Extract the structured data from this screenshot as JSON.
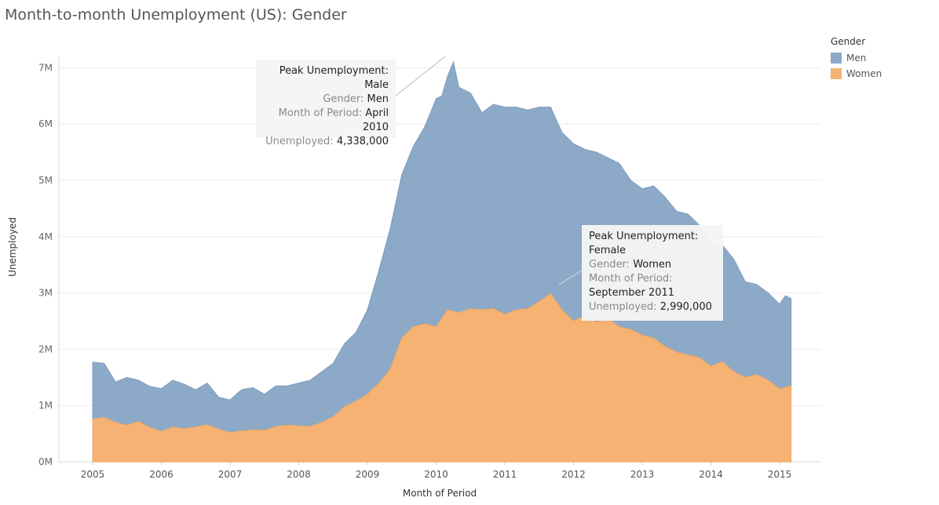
{
  "title": "Month-to-month Unemployment (US): Gender",
  "legend": {
    "title": "Gender",
    "items": [
      {
        "label": "Men",
        "color": "#8CA9C8"
      },
      {
        "label": "Women",
        "color": "#F5B273"
      }
    ]
  },
  "annotations": {
    "male": {
      "heading_label": "Peak Unemployment:",
      "heading_value": "Male",
      "gender_key": "Gender:",
      "gender_value": "Men",
      "month_key": "Month of Period:",
      "month_value_1": "April",
      "month_value_2": "2010",
      "unemployed_key": "Unemployed:",
      "unemployed_value": "4,338,000"
    },
    "female": {
      "heading_1": "Peak Unemployment:",
      "heading_2": "Female",
      "gender_key": "Gender:",
      "gender_value": "Women",
      "month_key": "Month of Period:",
      "month_value": "September 2011",
      "unemployed_key": "Unemployed:",
      "unemployed_value": "2,990,000"
    }
  },
  "chart_data": {
    "type": "area",
    "stacked": true,
    "title": "Month-to-month Unemployment (US): Gender",
    "xlabel": "Month of Period",
    "ylabel": "Unemployed",
    "ylim": [
      0,
      7200000
    ],
    "y_ticks": [
      "0M",
      "1M",
      "2M",
      "3M",
      "4M",
      "5M",
      "6M",
      "7M"
    ],
    "x_ticks": [
      "2005",
      "2006",
      "2007",
      "2008",
      "2009",
      "2010",
      "2011",
      "2012",
      "2013",
      "2014",
      "2015"
    ],
    "grid": true,
    "legend_position": "top-right",
    "series": [
      {
        "name": "Women",
        "color": "#F5B273",
        "points": [
          [
            "2005-01",
            760000
          ],
          [
            "2005-03",
            790000
          ],
          [
            "2005-05",
            700000
          ],
          [
            "2005-07",
            650000
          ],
          [
            "2005-09",
            720000
          ],
          [
            "2005-11",
            610000
          ],
          [
            "2006-01",
            540000
          ],
          [
            "2006-03",
            620000
          ],
          [
            "2006-05",
            590000
          ],
          [
            "2006-07",
            620000
          ],
          [
            "2006-09",
            660000
          ],
          [
            "2006-11",
            580000
          ],
          [
            "2007-01",
            520000
          ],
          [
            "2007-03",
            550000
          ],
          [
            "2007-05",
            570000
          ],
          [
            "2007-07",
            560000
          ],
          [
            "2007-09",
            630000
          ],
          [
            "2007-11",
            650000
          ],
          [
            "2008-01",
            640000
          ],
          [
            "2008-03",
            630000
          ],
          [
            "2008-05",
            700000
          ],
          [
            "2008-07",
            800000
          ],
          [
            "2008-09",
            980000
          ],
          [
            "2008-11",
            1080000
          ],
          [
            "2009-01",
            1200000
          ],
          [
            "2009-03",
            1400000
          ],
          [
            "2009-05",
            1650000
          ],
          [
            "2009-07",
            2200000
          ],
          [
            "2009-09",
            2400000
          ],
          [
            "2009-11",
            2450000
          ],
          [
            "2010-01",
            2400000
          ],
          [
            "2010-03",
            2700000
          ],
          [
            "2010-05",
            2650000
          ],
          [
            "2010-07",
            2720000
          ],
          [
            "2010-09",
            2700000
          ],
          [
            "2010-11",
            2720000
          ],
          [
            "2011-01",
            2620000
          ],
          [
            "2011-03",
            2700000
          ],
          [
            "2011-05",
            2720000
          ],
          [
            "2011-07",
            2850000
          ],
          [
            "2011-09",
            2990000
          ],
          [
            "2011-11",
            2700000
          ],
          [
            "2012-01",
            2500000
          ],
          [
            "2012-03",
            2600000
          ],
          [
            "2012-05",
            2480000
          ],
          [
            "2012-07",
            2550000
          ],
          [
            "2012-09",
            2400000
          ],
          [
            "2012-11",
            2350000
          ],
          [
            "2013-01",
            2250000
          ],
          [
            "2013-03",
            2200000
          ],
          [
            "2013-05",
            2050000
          ],
          [
            "2013-07",
            1950000
          ],
          [
            "2013-09",
            1900000
          ],
          [
            "2013-11",
            1850000
          ],
          [
            "2014-01",
            1700000
          ],
          [
            "2014-03",
            1780000
          ],
          [
            "2014-05",
            1600000
          ],
          [
            "2014-07",
            1500000
          ],
          [
            "2014-09",
            1550000
          ],
          [
            "2014-11",
            1450000
          ],
          [
            "2015-01",
            1300000
          ],
          [
            "2015-03",
            1350000
          ]
        ]
      },
      {
        "name": "Men",
        "color": "#8CA9C8",
        "points": [
          [
            "2005-01",
            1770000
          ],
          [
            "2005-03",
            1750000
          ],
          [
            "2005-05",
            1420000
          ],
          [
            "2005-07",
            1500000
          ],
          [
            "2005-09",
            1450000
          ],
          [
            "2005-11",
            1340000
          ],
          [
            "2006-01",
            1300000
          ],
          [
            "2006-03",
            1450000
          ],
          [
            "2006-05",
            1380000
          ],
          [
            "2006-07",
            1280000
          ],
          [
            "2006-09",
            1400000
          ],
          [
            "2006-11",
            1150000
          ],
          [
            "2007-01",
            1100000
          ],
          [
            "2007-03",
            1280000
          ],
          [
            "2007-05",
            1320000
          ],
          [
            "2007-07",
            1200000
          ],
          [
            "2007-09",
            1350000
          ],
          [
            "2007-11",
            1350000
          ],
          [
            "2008-01",
            1400000
          ],
          [
            "2008-03",
            1450000
          ],
          [
            "2008-05",
            1600000
          ],
          [
            "2008-07",
            1750000
          ],
          [
            "2008-09",
            2100000
          ],
          [
            "2008-11",
            2300000
          ],
          [
            "2009-01",
            2700000
          ],
          [
            "2009-03",
            3400000
          ],
          [
            "2009-05",
            4150000
          ],
          [
            "2009-07",
            5100000
          ],
          [
            "2009-09",
            5600000
          ],
          [
            "2009-11",
            5950000
          ],
          [
            "2010-01",
            6450000
          ],
          [
            "2010-02",
            6500000
          ],
          [
            "2010-03",
            6850000
          ],
          [
            "2010-04",
            7100000
          ],
          [
            "2010-05",
            6650000
          ],
          [
            "2010-07",
            6550000
          ],
          [
            "2010-09",
            6200000
          ],
          [
            "2010-11",
            6350000
          ],
          [
            "2011-01",
            6300000
          ],
          [
            "2011-03",
            6300000
          ],
          [
            "2011-05",
            6250000
          ],
          [
            "2011-07",
            6300000
          ],
          [
            "2011-09",
            6300000
          ],
          [
            "2011-11",
            5850000
          ],
          [
            "2012-01",
            5650000
          ],
          [
            "2012-03",
            5550000
          ],
          [
            "2012-05",
            5500000
          ],
          [
            "2012-07",
            5400000
          ],
          [
            "2012-09",
            5300000
          ],
          [
            "2012-11",
            5000000
          ],
          [
            "2013-01",
            4850000
          ],
          [
            "2013-03",
            4900000
          ],
          [
            "2013-05",
            4700000
          ],
          [
            "2013-07",
            4450000
          ],
          [
            "2013-09",
            4400000
          ],
          [
            "2013-11",
            4200000
          ],
          [
            "2014-01",
            3900000
          ],
          [
            "2014-03",
            3850000
          ],
          [
            "2014-05",
            3600000
          ],
          [
            "2014-07",
            3200000
          ],
          [
            "2014-09",
            3150000
          ],
          [
            "2014-11",
            3000000
          ],
          [
            "2015-01",
            2800000
          ],
          [
            "2015-02",
            2950000
          ],
          [
            "2015-03",
            2900000
          ]
        ]
      }
    ]
  }
}
